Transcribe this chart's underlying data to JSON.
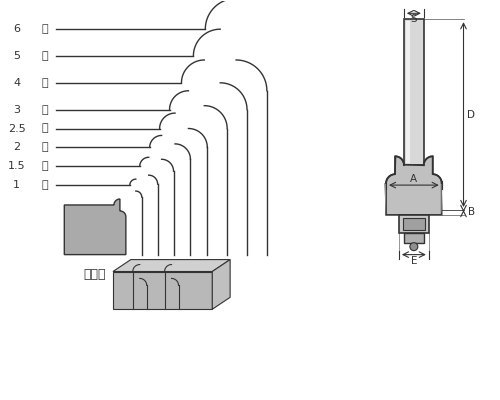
{
  "bg_color": "#ffffff",
  "line_color": "#333333",
  "fill_color": "#999999",
  "labels": [
    "6",
    "5",
    "4",
    "3",
    "2.5",
    "2",
    "1.5",
    "1"
  ],
  "label_suffix": "分",
  "workpiece_label": "被削材",
  "dim_labels": [
    "S",
    "D",
    "A",
    "B",
    "E"
  ]
}
